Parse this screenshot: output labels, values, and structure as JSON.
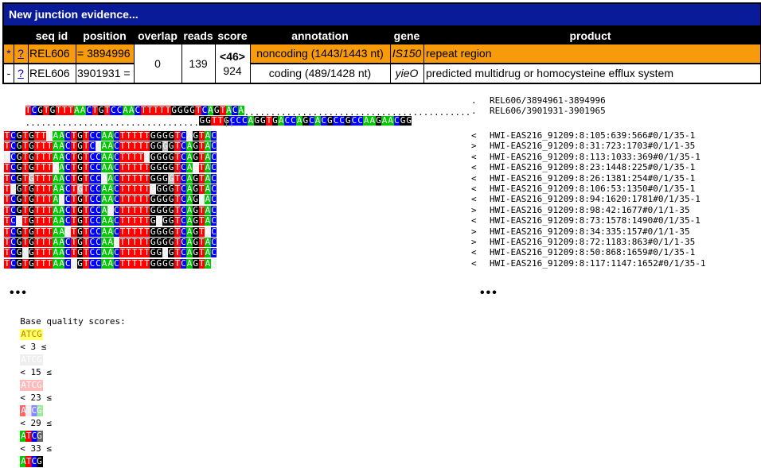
{
  "title": "New junction evidence...",
  "columns": [
    "seq id",
    "position",
    "overlap",
    "reads",
    "score",
    "annotation",
    "gene",
    "product"
  ],
  "side_links": [
    {
      "mark": "*",
      "link": "?"
    },
    {
      "mark": "-",
      "link": "?"
    }
  ],
  "rows": [
    {
      "seq_id": "REL606",
      "position": "= 3894996",
      "annotation": "noncoding (1443/1443 nt)",
      "gene": "IS150",
      "product": "repeat region"
    },
    {
      "seq_id": "REL606",
      "position": "3901931 =",
      "annotation": "coding (489/1428 nt)",
      "gene": "yieO",
      "product": "predicted multidrug or homocysteine efflux system"
    }
  ],
  "shared": {
    "overlap": "0",
    "reads": "139",
    "score_top": "<46>",
    "score_bottom": "924"
  },
  "colors": {
    "header_blue": "#0a1b9a",
    "row_orange": "#f79b0b",
    "A": "#00cc00",
    "C": "#0000ff",
    "G": "#000000",
    "T": "#ff0000"
  },
  "alignment": {
    "ref1": {
      "seq": "TCGTGTTTAACTGTCCAACTTTTTGGGGTCAGTACA",
      "dots": "...........................................",
      "strand": ".",
      "label": "REL606/3894961-3894996"
    },
    "ref2": {
      "dots": ".................................",
      "seq": "GGTTGCCCAGGTGACCAGCACGCCGCCAAGAACGG",
      "strand": ".",
      "label": "REL606/3901931-3901965"
    },
    "junction_mark": "||",
    "read_seq": "TCGTGTTTAACTGTCCAACTTTTTGGGGTCAGTAC",
    "reads": [
      {
        "strand": "<",
        "label": "HWI-EAS216_91209:8:105:639:566#0/1/35-1"
      },
      {
        "strand": ">",
        "label": "HWI-EAS216_91209:8:31:723:1703#0/1/1-35"
      },
      {
        "strand": "<",
        "label": "HWI-EAS216_91209:8:113:1033:369#0/1/35-1"
      },
      {
        "strand": "<",
        "label": "HWI-EAS216_91209:8:23:1448:225#0/1/35-1"
      },
      {
        "strand": "<",
        "label": "HWI-EAS216_91209:8:26:1381:254#0/1/35-1"
      },
      {
        "strand": "<",
        "label": "HWI-EAS216_91209:8:106:53:1350#0/1/35-1"
      },
      {
        "strand": "<",
        "label": "HWI-EAS216_91209:8:94:1620:1781#0/1/35-1"
      },
      {
        "strand": ">",
        "label": "HWI-EAS216_91209:8:98:42:1677#0/1/1-35"
      },
      {
        "strand": "<",
        "label": "HWI-EAS216_91209:8:73:1578:1490#0/1/35-1"
      },
      {
        "strand": ">",
        "label": "HWI-EAS216_91209:8:34:335:157#0/1/1-35"
      },
      {
        "strand": ">",
        "label": "HWI-EAS216_91209:8:72:1183:863#0/1/1-35"
      },
      {
        "strand": "<",
        "label": "HWI-EAS216_91209:8:50:868:1659#0/1/35-1"
      },
      {
        "strand": "<",
        "label": "HWI-EAS216_91209:8:117:1147:1652#0/1/35-1"
      }
    ],
    "more_marker": "•••"
  },
  "quality_legend": {
    "label": "Base quality scores:",
    "sample": "ATCG",
    "separators": [
      "< 3 ≤",
      "< 15 ≤",
      "< 23 ≤",
      "< 29 ≤",
      "< 33 ≤"
    ]
  }
}
